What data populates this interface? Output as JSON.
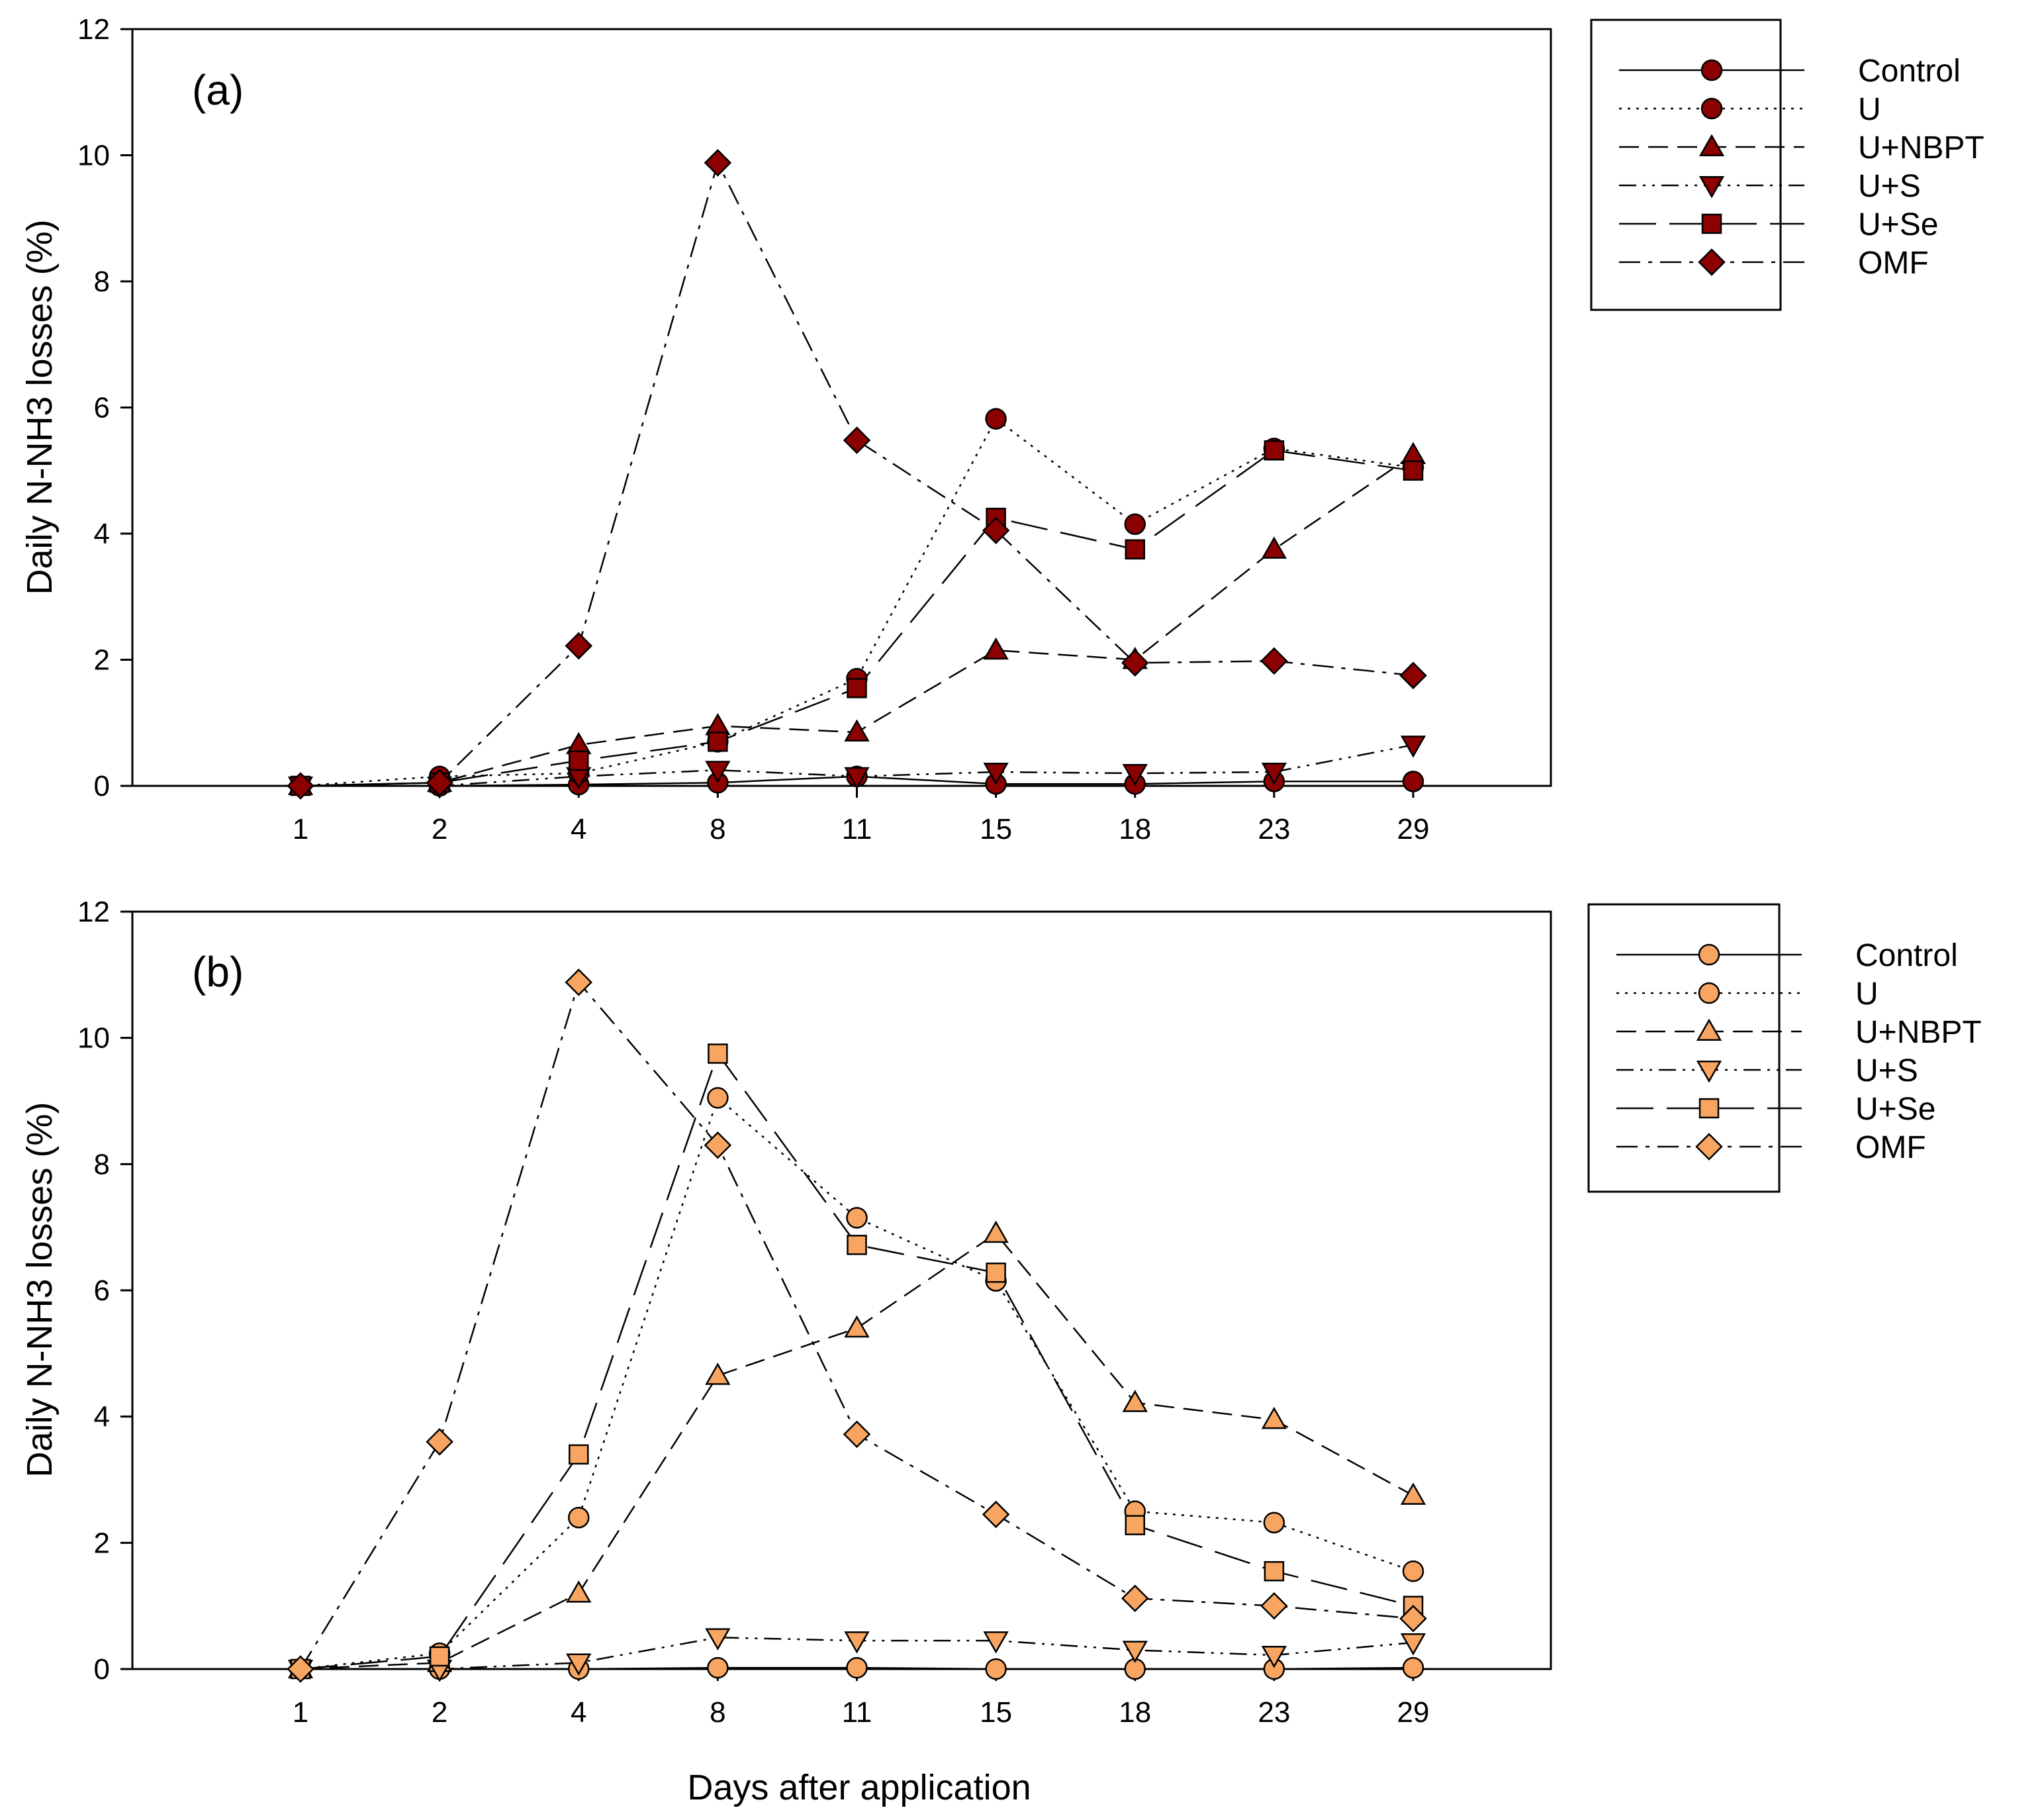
{
  "figure": {
    "xlabel": "Days after application",
    "ylabel": "Daily N-NH3 losses (%)"
  },
  "chart_data": [
    {
      "type": "line",
      "title": "(a)",
      "xlabel": "Days after application",
      "ylabel": "Daily N-NH3 losses (%)",
      "categories": [
        "1",
        "2",
        "4",
        "8",
        "11",
        "15",
        "18",
        "23",
        "29"
      ],
      "ylim": [
        0,
        12
      ],
      "yticks": [
        0,
        2,
        4,
        6,
        8,
        10,
        12
      ],
      "grid": false,
      "legend_position": "right",
      "marker_color": "#8b0000",
      "series": [
        {
          "name": "Control",
          "style": "solid",
          "marker": "circle",
          "values": [
            0,
            0.0,
            0.02,
            0.05,
            0.15,
            0.03,
            0.03,
            0.07,
            0.07
          ]
        },
        {
          "name": "U",
          "style": "dotted",
          "marker": "circle",
          "values": [
            0,
            0.15,
            0.2,
            0.7,
            1.7,
            5.82,
            4.15,
            5.35,
            5.05
          ]
        },
        {
          "name": "U+NBPT",
          "style": "dashed",
          "marker": "triangle-up",
          "values": [
            0,
            0.05,
            0.65,
            0.95,
            0.85,
            2.15,
            2.0,
            3.75,
            5.25
          ]
        },
        {
          "name": "U+S",
          "style": "dashdotdot",
          "marker": "triangle-down",
          "values": [
            0,
            0.0,
            0.15,
            0.25,
            0.15,
            0.22,
            0.2,
            0.22,
            0.65
          ]
        },
        {
          "name": "U+Se",
          "style": "longdash",
          "marker": "square",
          "values": [
            0,
            0.05,
            0.4,
            0.7,
            1.55,
            4.25,
            3.75,
            5.32,
            5.0
          ]
        },
        {
          "name": "OMF",
          "style": "dashdot",
          "marker": "diamond",
          "values": [
            0,
            0.05,
            2.22,
            9.88,
            5.48,
            4.05,
            1.95,
            1.98,
            1.75
          ]
        }
      ]
    },
    {
      "type": "line",
      "title": "(b)",
      "xlabel": "Days after application",
      "ylabel": "Daily N-NH3 losses (%)",
      "categories": [
        "1",
        "2",
        "4",
        "8",
        "11",
        "15",
        "18",
        "23",
        "29"
      ],
      "ylim": [
        0,
        12
      ],
      "yticks": [
        0,
        2,
        4,
        6,
        8,
        10,
        12
      ],
      "grid": false,
      "legend_position": "right",
      "marker_color": "#f7a560",
      "series": [
        {
          "name": "Control",
          "style": "solid",
          "marker": "circle",
          "values": [
            0,
            0.0,
            0.0,
            0.02,
            0.02,
            0.0,
            0.0,
            0.0,
            0.02
          ]
        },
        {
          "name": "U",
          "style": "dotted",
          "marker": "circle",
          "values": [
            0,
            0.25,
            2.4,
            9.05,
            7.15,
            6.15,
            2.5,
            2.32,
            1.55
          ]
        },
        {
          "name": "U+NBPT",
          "style": "dashed",
          "marker": "triangle-up",
          "values": [
            0,
            0.1,
            1.2,
            4.65,
            5.4,
            6.9,
            4.22,
            3.95,
            2.75
          ]
        },
        {
          "name": "U+S",
          "style": "dashdotdot",
          "marker": "triangle-down",
          "values": [
            0,
            0.0,
            0.1,
            0.5,
            0.45,
            0.45,
            0.3,
            0.22,
            0.42
          ]
        },
        {
          "name": "U+Se",
          "style": "longdash",
          "marker": "square",
          "values": [
            0,
            0.2,
            3.4,
            9.75,
            6.72,
            6.28,
            2.28,
            1.55,
            1.0
          ]
        },
        {
          "name": "OMF",
          "style": "dashdot",
          "marker": "diamond",
          "values": [
            0,
            3.6,
            10.88,
            8.3,
            3.72,
            2.45,
            1.12,
            1.0,
            0.8
          ]
        }
      ]
    }
  ]
}
